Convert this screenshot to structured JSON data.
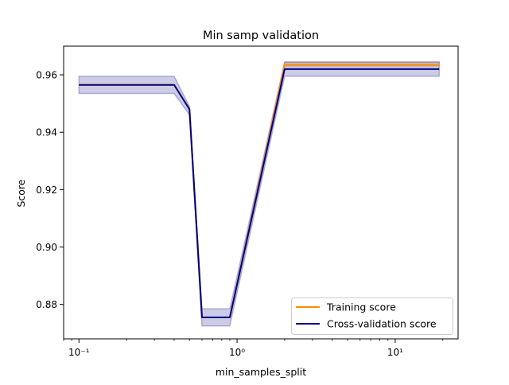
{
  "chart_data": {
    "type": "line",
    "title": "Min samp validation",
    "xlabel": "min_samples_split",
    "ylabel": "Score",
    "xscale": "log",
    "xlim": [
      0.08,
      25
    ],
    "ylim": [
      0.868,
      0.97
    ],
    "grid": false,
    "legend_position": "lower right",
    "x": [
      0.1,
      0.4,
      0.5,
      0.6,
      0.9,
      2,
      5,
      10,
      19
    ],
    "x_tick_labels": [
      "10⁻¹",
      "10⁰",
      "10¹"
    ],
    "y_ticks": [
      0.88,
      0.9,
      0.92,
      0.94,
      0.96
    ],
    "y_tick_labels": [
      "0.88",
      "0.90",
      "0.92",
      "0.94",
      "0.96"
    ],
    "series": [
      {
        "name": "Training score",
        "color": "#ff8c00",
        "values": [
          0.9565,
          0.9565,
          0.948,
          0.8755,
          0.8755,
          0.9635,
          0.9635,
          0.9635,
          0.9635
        ],
        "band_lower": [
          0.9565,
          0.9565,
          0.948,
          0.8755,
          0.8755,
          0.963,
          0.963,
          0.963,
          0.963
        ],
        "band_upper": [
          0.9565,
          0.9565,
          0.948,
          0.8755,
          0.8755,
          0.9645,
          0.9645,
          0.9645,
          0.9645
        ],
        "band_color": "#ff8c00"
      },
      {
        "name": "Cross-validation score",
        "color": "#000080",
        "values": [
          0.9565,
          0.9565,
          0.948,
          0.8755,
          0.8755,
          0.962,
          0.962,
          0.962,
          0.962
        ],
        "band_lower": [
          0.9535,
          0.9535,
          0.946,
          0.8725,
          0.8725,
          0.9595,
          0.9595,
          0.9595,
          0.9595
        ],
        "band_upper": [
          0.9595,
          0.9595,
          0.949,
          0.8785,
          0.8785,
          0.9645,
          0.9645,
          0.9645,
          0.9645
        ],
        "band_color": "#000080"
      }
    ]
  }
}
